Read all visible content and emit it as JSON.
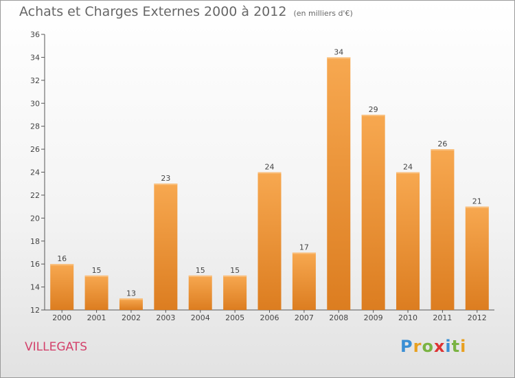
{
  "title": "Achats et Charges Externes 2000 à 2012",
  "subtitle": "(en milliers d'€)",
  "commune": "VILLEGATS",
  "logo": {
    "text": "Proxiti",
    "colors": [
      "#3a8fd4",
      "#e8a020",
      "#7ab342",
      "#d33",
      "#3a8fd4",
      "#7ab342",
      "#e8a020"
    ]
  },
  "colors": {
    "bar": "#f09a3e",
    "bar_light": "#f7b36a",
    "bar_dark": "#d97b1e",
    "title": "#666666",
    "commune": "#d3416b"
  },
  "chart_data": {
    "type": "bar",
    "categories": [
      "2000",
      "2001",
      "2002",
      "2003",
      "2004",
      "2005",
      "2006",
      "2007",
      "2008",
      "2009",
      "2010",
      "2011",
      "2012"
    ],
    "values": [
      16,
      15,
      13,
      23,
      15,
      15,
      24,
      17,
      34,
      29,
      24,
      26,
      21
    ],
    "ylim": [
      12,
      36
    ],
    "yticks": [
      12,
      14,
      16,
      18,
      20,
      22,
      24,
      26,
      28,
      30,
      32,
      34,
      36
    ],
    "grid": false
  }
}
